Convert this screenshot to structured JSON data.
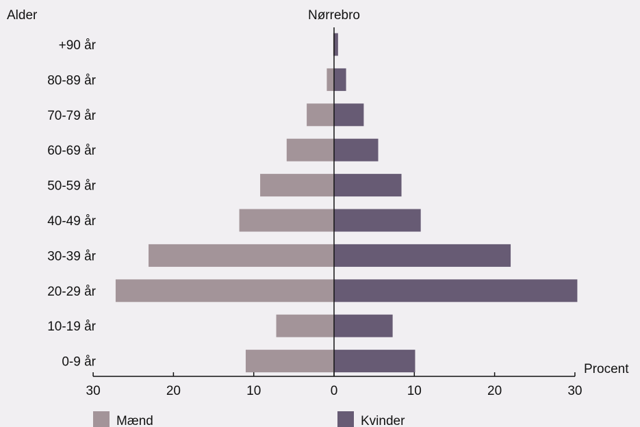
{
  "colors": {
    "background": "#f1eff2",
    "men": "#a39499",
    "women": "#675b74",
    "axis": "#111111"
  },
  "chart_data": {
    "type": "bar",
    "orientation": "horizontal-population-pyramid",
    "title": "Nørrebro",
    "ylabel": "Alder",
    "xlabel": "Procent",
    "categories": [
      "+90 år",
      "80-89 år",
      "70-79 år",
      "60-69 år",
      "50-59 år",
      "40-49 år",
      "30-39 år",
      "20-29 år",
      "10-19 år",
      "0-9 år"
    ],
    "series": [
      {
        "name": "Mænd",
        "side": "left",
        "values": [
          0.1,
          0.9,
          3.4,
          5.9,
          9.2,
          11.8,
          23.1,
          27.2,
          7.2,
          11.0
        ]
      },
      {
        "name": "Kvinder",
        "side": "right",
        "values": [
          0.5,
          1.5,
          3.7,
          5.5,
          8.4,
          10.8,
          22.0,
          30.3,
          7.3,
          10.1
        ]
      }
    ],
    "xticks": [
      "30",
      "20",
      "10",
      "0",
      "10",
      "20",
      "30"
    ],
    "xlim": [
      -30,
      30
    ],
    "grid": false,
    "legend": "bottom"
  }
}
